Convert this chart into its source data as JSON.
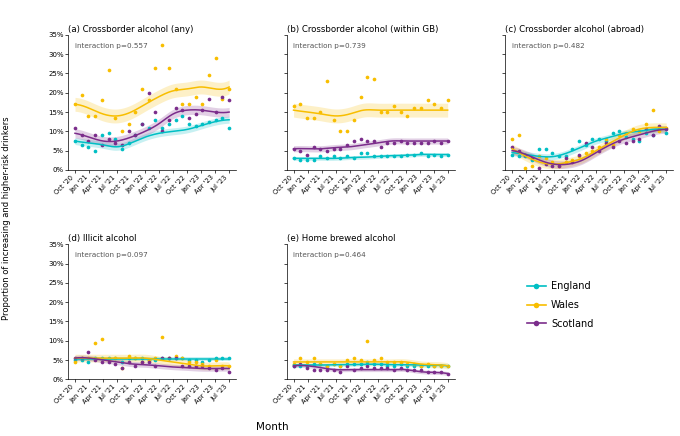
{
  "titles": [
    "(a) Crossborder alcohol (any)",
    "(b) Crossborder alcohol (within GB)",
    "(c) Crossborder alcohol (abroad)",
    "(d) Illicit alcohol",
    "(e) Home brewed alcohol"
  ],
  "interactions": [
    "interaction p=0.557",
    "interaction p=0.739",
    "interaction p=0.482",
    "interaction p=0.097",
    "interaction p=0.464"
  ],
  "x_labels": [
    "Oct '20",
    "Jan '21",
    "Apr '21",
    "Jul '21",
    "Oct '21",
    "Jan '22",
    "Apr '22",
    "Jul '22",
    "Oct '22",
    "Jan '23",
    "Apr '23",
    "Jul '23"
  ],
  "england_color": "#00BFC4",
  "wales_color": "#F8BE00",
  "scotland_color": "#7B2D8B",
  "ylabel": "Proportion of increasing and higher-risk drinkers",
  "xlabel": "Month",
  "panel_a": {
    "england_scatter": [
      7.5,
      6.5,
      6.0,
      5.0,
      9.0,
      9.5,
      8.0,
      5.5,
      7.0,
      9.0,
      12.0,
      11.0,
      13.0,
      11.0,
      12.0,
      13.0,
      14.0,
      12.0,
      11.5,
      12.0,
      12.5,
      13.0,
      13.5,
      11.0
    ],
    "wales_scatter": [
      17.0,
      19.5,
      14.0,
      14.0,
      18.0,
      26.0,
      13.5,
      10.0,
      12.0,
      15.0,
      21.0,
      18.0,
      26.5,
      32.5,
      26.5,
      21.0,
      17.0,
      17.0,
      19.0,
      17.0,
      24.5,
      29.0,
      18.5,
      21.0
    ],
    "scotland_scatter": [
      11.0,
      9.0,
      7.5,
      9.0,
      6.5,
      8.0,
      7.0,
      6.5,
      10.0,
      9.0,
      12.0,
      20.0,
      15.0,
      10.0,
      13.0,
      16.0,
      15.5,
      13.5,
      14.5,
      15.5,
      18.5,
      15.0,
      19.0,
      18.0
    ],
    "england_smooth": [
      7.5,
      7.0,
      6.5,
      6.0,
      7.0,
      8.5,
      9.5,
      10.0,
      10.5,
      11.5,
      12.5,
      13.0
    ],
    "wales_smooth": [
      17.0,
      16.0,
      14.5,
      14.0,
      15.0,
      17.0,
      19.0,
      20.5,
      21.0,
      21.5,
      21.0,
      21.5
    ],
    "scotland_smooth": [
      9.5,
      8.5,
      7.5,
      7.5,
      8.5,
      10.0,
      12.0,
      14.5,
      15.5,
      15.5,
      15.0,
      15.0
    ],
    "england_se": [
      0.9,
      0.9,
      0.9,
      0.9,
      0.9,
      0.9,
      0.9,
      0.9,
      0.9,
      0.9,
      0.9,
      0.9
    ],
    "wales_se": [
      1.8,
      1.8,
      1.8,
      1.8,
      1.8,
      1.8,
      1.8,
      1.8,
      1.8,
      1.8,
      1.8,
      1.8
    ],
    "scotland_se": [
      1.2,
      1.2,
      1.2,
      1.2,
      1.2,
      1.2,
      1.2,
      1.2,
      1.2,
      1.2,
      1.2,
      1.2
    ]
  },
  "panel_b": {
    "england_scatter": [
      3.0,
      2.5,
      2.5,
      2.5,
      3.5,
      3.0,
      3.5,
      3.0,
      3.5,
      3.0,
      4.5,
      4.5,
      3.5,
      3.5,
      3.5,
      3.5,
      3.5,
      4.0,
      4.0,
      4.5,
      3.5,
      4.0,
      3.5,
      4.0
    ],
    "wales_scatter": [
      16.5,
      17.0,
      13.5,
      13.5,
      15.0,
      23.0,
      13.0,
      10.0,
      10.0,
      13.0,
      19.0,
      24.0,
      23.5,
      15.0,
      15.0,
      16.5,
      15.0,
      14.0,
      16.0,
      16.0,
      18.0,
      17.0,
      16.0,
      18.0
    ],
    "scotland_scatter": [
      5.5,
      5.0,
      4.0,
      6.0,
      5.5,
      5.0,
      5.5,
      5.5,
      6.5,
      7.5,
      8.0,
      7.5,
      7.5,
      6.0,
      7.0,
      7.0,
      7.5,
      7.0,
      7.0,
      7.0,
      7.0,
      7.5,
      7.0,
      7.5
    ],
    "england_smooth": [
      3.0,
      3.0,
      3.0,
      3.0,
      3.2,
      3.3,
      3.5,
      3.7,
      3.8,
      4.0,
      4.0,
      4.0
    ],
    "wales_smooth": [
      15.5,
      15.0,
      14.5,
      14.0,
      14.5,
      15.5,
      15.5,
      15.5,
      15.5,
      15.5,
      15.5,
      15.5
    ],
    "scotland_smooth": [
      5.5,
      5.5,
      5.5,
      5.8,
      6.0,
      6.5,
      7.0,
      7.5,
      7.5,
      7.5,
      7.5,
      7.5
    ],
    "england_se": [
      0.5,
      0.5,
      0.5,
      0.5,
      0.5,
      0.5,
      0.5,
      0.5,
      0.5,
      0.5,
      0.5,
      0.5
    ],
    "wales_se": [
      1.8,
      1.8,
      1.8,
      1.8,
      1.8,
      1.8,
      1.8,
      1.8,
      1.8,
      1.8,
      1.8,
      1.8
    ],
    "scotland_se": [
      0.8,
      0.8,
      0.8,
      0.8,
      0.8,
      0.8,
      0.8,
      0.8,
      0.8,
      0.8,
      0.8,
      0.8
    ]
  },
  "panel_c": {
    "england_scatter": [
      4.0,
      3.5,
      3.5,
      2.5,
      5.5,
      5.5,
      4.5,
      3.5,
      3.5,
      5.5,
      7.5,
      6.5,
      8.0,
      8.0,
      7.5,
      9.5,
      10.0,
      8.5,
      8.0,
      7.5,
      9.5,
      9.0,
      10.5,
      9.5
    ],
    "wales_scatter": [
      8.0,
      9.0,
      0.5,
      1.0,
      3.5,
      3.0,
      2.0,
      1.0,
      2.0,
      2.5,
      3.5,
      4.5,
      5.0,
      6.0,
      8.0,
      6.5,
      9.0,
      9.5,
      10.5,
      10.0,
      12.0,
      15.5,
      10.0,
      11.0
    ],
    "scotland_scatter": [
      6.0,
      5.0,
      4.0,
      3.0,
      0.5,
      1.5,
      1.0,
      1.0,
      3.0,
      2.0,
      4.0,
      7.0,
      6.0,
      5.0,
      7.0,
      6.0,
      7.5,
      7.0,
      7.5,
      8.0,
      10.5,
      9.0,
      11.5,
      10.5
    ],
    "england_smooth": [
      4.5,
      4.0,
      3.5,
      3.5,
      4.5,
      6.0,
      7.5,
      8.5,
      9.5,
      10.0,
      10.5,
      10.5
    ],
    "wales_smooth": [
      5.5,
      3.5,
      2.0,
      1.5,
      2.0,
      3.0,
      5.0,
      7.0,
      9.0,
      10.5,
      11.0,
      11.0
    ],
    "scotland_smooth": [
      5.0,
      4.0,
      2.5,
      1.5,
      1.5,
      2.5,
      4.5,
      6.5,
      8.0,
      9.0,
      10.0,
      10.5
    ],
    "england_se": [
      0.8,
      0.8,
      0.8,
      0.8,
      0.8,
      0.8,
      0.8,
      0.8,
      0.8,
      0.8,
      0.8,
      0.8
    ],
    "wales_se": [
      1.2,
      1.2,
      1.2,
      1.2,
      1.2,
      1.2,
      1.2,
      1.2,
      1.2,
      1.2,
      1.2,
      1.2
    ],
    "scotland_se": [
      1.0,
      1.0,
      1.0,
      1.0,
      1.0,
      1.0,
      1.0,
      1.0,
      1.0,
      1.0,
      1.0,
      1.0
    ]
  },
  "panel_d": {
    "england_scatter": [
      5.0,
      5.0,
      4.5,
      5.5,
      5.5,
      5.5,
      5.5,
      4.5,
      5.5,
      5.5,
      5.5,
      5.0,
      5.0,
      5.5,
      5.5,
      5.5,
      5.5,
      5.0,
      5.0,
      4.5,
      5.0,
      5.5,
      5.5,
      5.5
    ],
    "wales_scatter": [
      4.5,
      5.5,
      5.5,
      9.5,
      10.5,
      5.0,
      5.5,
      3.0,
      6.0,
      5.5,
      4.5,
      5.0,
      5.5,
      11.0,
      5.5,
      6.0,
      5.5,
      4.5,
      4.5,
      4.0,
      3.5,
      5.0,
      3.5,
      3.5
    ],
    "scotland_scatter": [
      5.5,
      5.5,
      7.0,
      5.0,
      4.5,
      4.5,
      4.0,
      3.0,
      4.5,
      3.5,
      4.5,
      4.5,
      3.5,
      5.5,
      5.5,
      5.5,
      3.5,
      3.5,
      3.5,
      3.5,
      3.0,
      2.5,
      3.0,
      2.0
    ],
    "england_smooth": [
      5.2,
      5.2,
      5.2,
      5.2,
      5.2,
      5.2,
      5.2,
      5.2,
      5.2,
      5.2,
      5.2,
      5.2
    ],
    "wales_smooth": [
      5.5,
      5.5,
      5.5,
      5.5,
      5.5,
      5.5,
      5.0,
      4.5,
      4.0,
      3.5,
      3.5,
      3.5
    ],
    "scotland_smooth": [
      5.5,
      5.5,
      5.0,
      4.5,
      4.0,
      3.8,
      3.5,
      3.2,
      3.0,
      2.8,
      2.8,
      2.8
    ],
    "england_se": [
      0.5,
      0.5,
      0.5,
      0.5,
      0.5,
      0.5,
      0.5,
      0.5,
      0.5,
      0.5,
      0.5,
      0.5
    ],
    "wales_se": [
      1.0,
      1.0,
      1.0,
      1.0,
      1.0,
      1.0,
      1.0,
      1.0,
      1.0,
      1.0,
      1.0,
      1.0
    ],
    "scotland_se": [
      0.7,
      0.7,
      0.7,
      0.7,
      0.7,
      0.7,
      0.7,
      0.7,
      0.7,
      0.7,
      0.7,
      0.7
    ]
  },
  "panel_e": {
    "england_scatter": [
      3.5,
      3.5,
      3.5,
      4.0,
      4.0,
      3.5,
      4.0,
      3.5,
      4.0,
      4.0,
      4.0,
      4.5,
      4.0,
      4.0,
      3.5,
      3.5,
      4.0,
      3.5,
      3.5,
      3.5,
      3.5,
      3.5,
      3.5,
      3.5
    ],
    "wales_scatter": [
      4.0,
      5.5,
      4.5,
      5.5,
      4.0,
      3.5,
      4.0,
      3.5,
      5.0,
      5.5,
      5.0,
      10.0,
      5.0,
      5.5,
      4.5,
      4.5,
      4.5,
      4.0,
      4.0,
      3.5,
      4.0,
      3.5,
      3.5,
      3.5
    ],
    "scotland_scatter": [
      3.5,
      4.0,
      3.0,
      2.5,
      2.5,
      2.5,
      2.5,
      2.0,
      3.5,
      2.5,
      3.0,
      3.5,
      3.0,
      3.0,
      3.0,
      2.5,
      3.0,
      2.5,
      2.5,
      2.5,
      2.0,
      2.0,
      2.0,
      1.5
    ],
    "england_smooth": [
      3.7,
      3.7,
      3.7,
      3.8,
      3.8,
      3.9,
      3.9,
      3.8,
      3.8,
      3.7,
      3.7,
      3.5
    ],
    "wales_smooth": [
      4.5,
      4.5,
      4.5,
      4.5,
      4.5,
      4.5,
      4.5,
      4.5,
      4.5,
      4.0,
      3.8,
      3.5
    ],
    "scotland_smooth": [
      3.5,
      3.5,
      3.0,
      2.5,
      2.5,
      2.5,
      2.5,
      2.5,
      2.5,
      2.0,
      1.8,
      1.5
    ],
    "england_se": [
      0.4,
      0.4,
      0.4,
      0.4,
      0.4,
      0.4,
      0.4,
      0.4,
      0.4,
      0.4,
      0.4,
      0.4
    ],
    "wales_se": [
      0.8,
      0.8,
      0.8,
      0.8,
      0.8,
      0.8,
      0.8,
      0.8,
      0.8,
      0.8,
      0.8,
      0.8
    ],
    "scotland_se": [
      0.5,
      0.5,
      0.5,
      0.5,
      0.5,
      0.5,
      0.5,
      0.5,
      0.5,
      0.5,
      0.5,
      0.5
    ]
  }
}
